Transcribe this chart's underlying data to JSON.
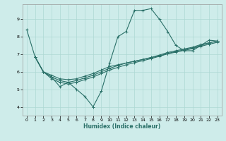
{
  "xlabel": "Humidex (Indice chaleur)",
  "bg_color": "#ceecea",
  "grid_color": "#aed8d4",
  "line_color": "#2a7068",
  "xlim": [
    -0.5,
    23.5
  ],
  "ylim": [
    3.5,
    9.85
  ],
  "yticks": [
    4,
    5,
    6,
    7,
    8,
    9
  ],
  "xticks": [
    0,
    1,
    2,
    3,
    4,
    5,
    6,
    7,
    8,
    9,
    10,
    11,
    12,
    13,
    14,
    15,
    16,
    17,
    18,
    19,
    20,
    21,
    22,
    23
  ],
  "series0": [
    8.4,
    6.85,
    6.0,
    5.7,
    5.15,
    5.4,
    5.0,
    4.6,
    4.0,
    4.9,
    6.5,
    8.0,
    8.3,
    9.5,
    9.5,
    9.6,
    9.0,
    8.3,
    7.5,
    7.2,
    7.2,
    7.5,
    7.8,
    7.75
  ],
  "series1_x": [
    1,
    2,
    3,
    4,
    5,
    6,
    7,
    8,
    9,
    10,
    11,
    12,
    13,
    14,
    15,
    16,
    17,
    18,
    19,
    20,
    21,
    22,
    23
  ],
  "series1_y": [
    6.85,
    6.0,
    5.8,
    5.6,
    5.55,
    5.6,
    5.75,
    5.9,
    6.1,
    6.3,
    6.4,
    6.5,
    6.6,
    6.7,
    6.8,
    6.9,
    7.05,
    7.15,
    7.25,
    7.35,
    7.5,
    7.65,
    7.75
  ],
  "series2_x": [
    1,
    2,
    3,
    4,
    5,
    6,
    7,
    8,
    9,
    10,
    11,
    12,
    13,
    14,
    15,
    16,
    17,
    18,
    19,
    20,
    21,
    22,
    23
  ],
  "series2_y": [
    6.85,
    6.0,
    5.7,
    5.5,
    5.4,
    5.5,
    5.65,
    5.8,
    6.0,
    6.2,
    6.35,
    6.5,
    6.6,
    6.7,
    6.82,
    6.95,
    7.1,
    7.2,
    7.3,
    7.4,
    7.55,
    7.65,
    7.75
  ],
  "series3_x": [
    1,
    2,
    3,
    4,
    5,
    6,
    7,
    8,
    9,
    10,
    11,
    12,
    13,
    14,
    15,
    16,
    17,
    18,
    19,
    20,
    21,
    22,
    23
  ],
  "series3_y": [
    6.85,
    6.0,
    5.6,
    5.4,
    5.3,
    5.4,
    5.55,
    5.7,
    5.9,
    6.1,
    6.25,
    6.4,
    6.52,
    6.63,
    6.75,
    6.88,
    7.02,
    7.12,
    7.22,
    7.32,
    7.45,
    7.57,
    7.68
  ]
}
